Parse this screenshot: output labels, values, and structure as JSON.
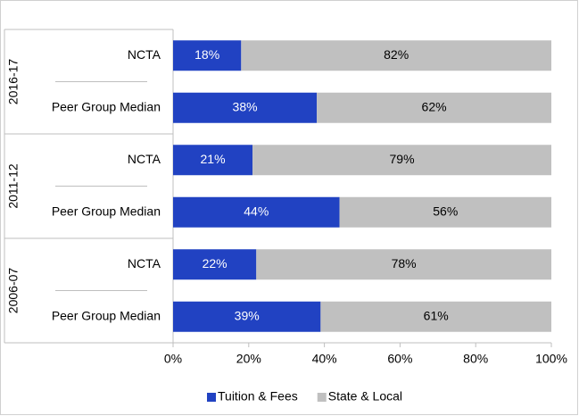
{
  "chart_data": {
    "type": "stacked_barh",
    "groups": [
      "2016-17",
      "2011-12",
      "2006-07"
    ],
    "categories": [
      "NCTA",
      "Peer Group Median",
      "NCTA",
      "Peer Group Median",
      "NCTA",
      "Peer Group Median"
    ],
    "series": [
      {
        "name": "Tuition & Fees",
        "color": "#2142c2",
        "values": [
          18,
          38,
          21,
          44,
          22,
          39
        ],
        "value_labels": [
          "18%",
          "38%",
          "21%",
          "44%",
          "22%",
          "39%"
        ]
      },
      {
        "name": "State & Local",
        "color": "#c0c0c0",
        "values": [
          82,
          62,
          79,
          56,
          78,
          61
        ],
        "value_labels": [
          "82%",
          "62%",
          "79%",
          "56%",
          "78%",
          "61%"
        ]
      }
    ],
    "xlim": [
      0,
      100
    ],
    "xticks": [
      {
        "value": 0,
        "label": "0%"
      },
      {
        "value": 20,
        "label": "20%"
      },
      {
        "value": 40,
        "label": "40%"
      },
      {
        "value": 60,
        "label": "60%"
      },
      {
        "value": 80,
        "label": "80%"
      },
      {
        "value": 100,
        "label": "100%"
      }
    ],
    "legend": "bottom"
  }
}
